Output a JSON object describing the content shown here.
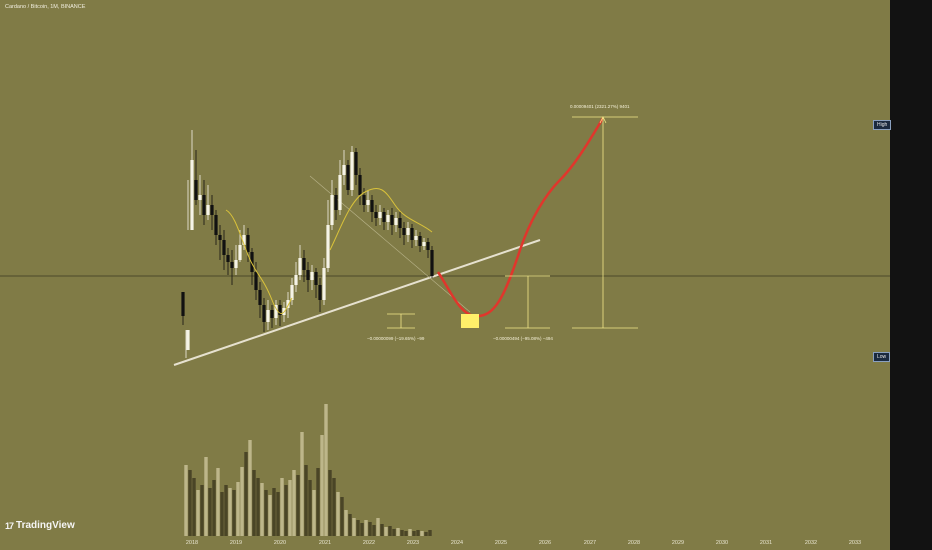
{
  "window": {
    "title": "Cardano / Bitcoin, 1M, BINANCE"
  },
  "price_labels": {
    "high": "High",
    "low": "Low"
  },
  "logo": {
    "mark": "17",
    "text": "TradingView"
  },
  "annotations": {
    "high_target": "0.00009401 (2321.27%) 9401",
    "drop_1": "−0.00000099 (−19.65%) −99",
    "drop_2": "−0.00000494 (−95.08%) −494"
  },
  "colors": {
    "background": "#807b46",
    "candle_up": "#f5f3e6",
    "candle_down": "#111111",
    "trendline": "#e6e1cf",
    "moving_average": "#d9c23a",
    "projection": "#e0362c",
    "target_box": "#fff06a",
    "volume_up": "#bdb68a",
    "volume_down": "#4a4526"
  },
  "chart_data": {
    "type": "candlestick",
    "title": "Cardano / Bitcoin, 1M, BINANCE",
    "x_tick_labels": [
      "2018",
      "2019",
      "2020",
      "2021",
      "2022",
      "2023",
      "2024",
      "2025",
      "2026",
      "2027",
      "2028",
      "2029",
      "2030",
      "2031",
      "2032",
      "2033"
    ],
    "y_scale": "log",
    "grid": false,
    "series": [
      {
        "name": "price",
        "kind": "candles",
        "note_units": "relative price units (axis unlabeled)"
      },
      {
        "name": "volume",
        "kind": "histogram"
      }
    ],
    "measurements": [
      {
        "label": "0.00009401 (2321.27%) 9401",
        "change": 9.401e-05,
        "percent": 2321.27
      },
      {
        "label": "−0.00000099 (−19.65%) −99",
        "change": -9.9e-07,
        "percent": -19.65
      },
      {
        "label": "−0.00000494 (−95.08%) −494",
        "change": -4.94e-06,
        "percent": -95.08
      }
    ]
  }
}
